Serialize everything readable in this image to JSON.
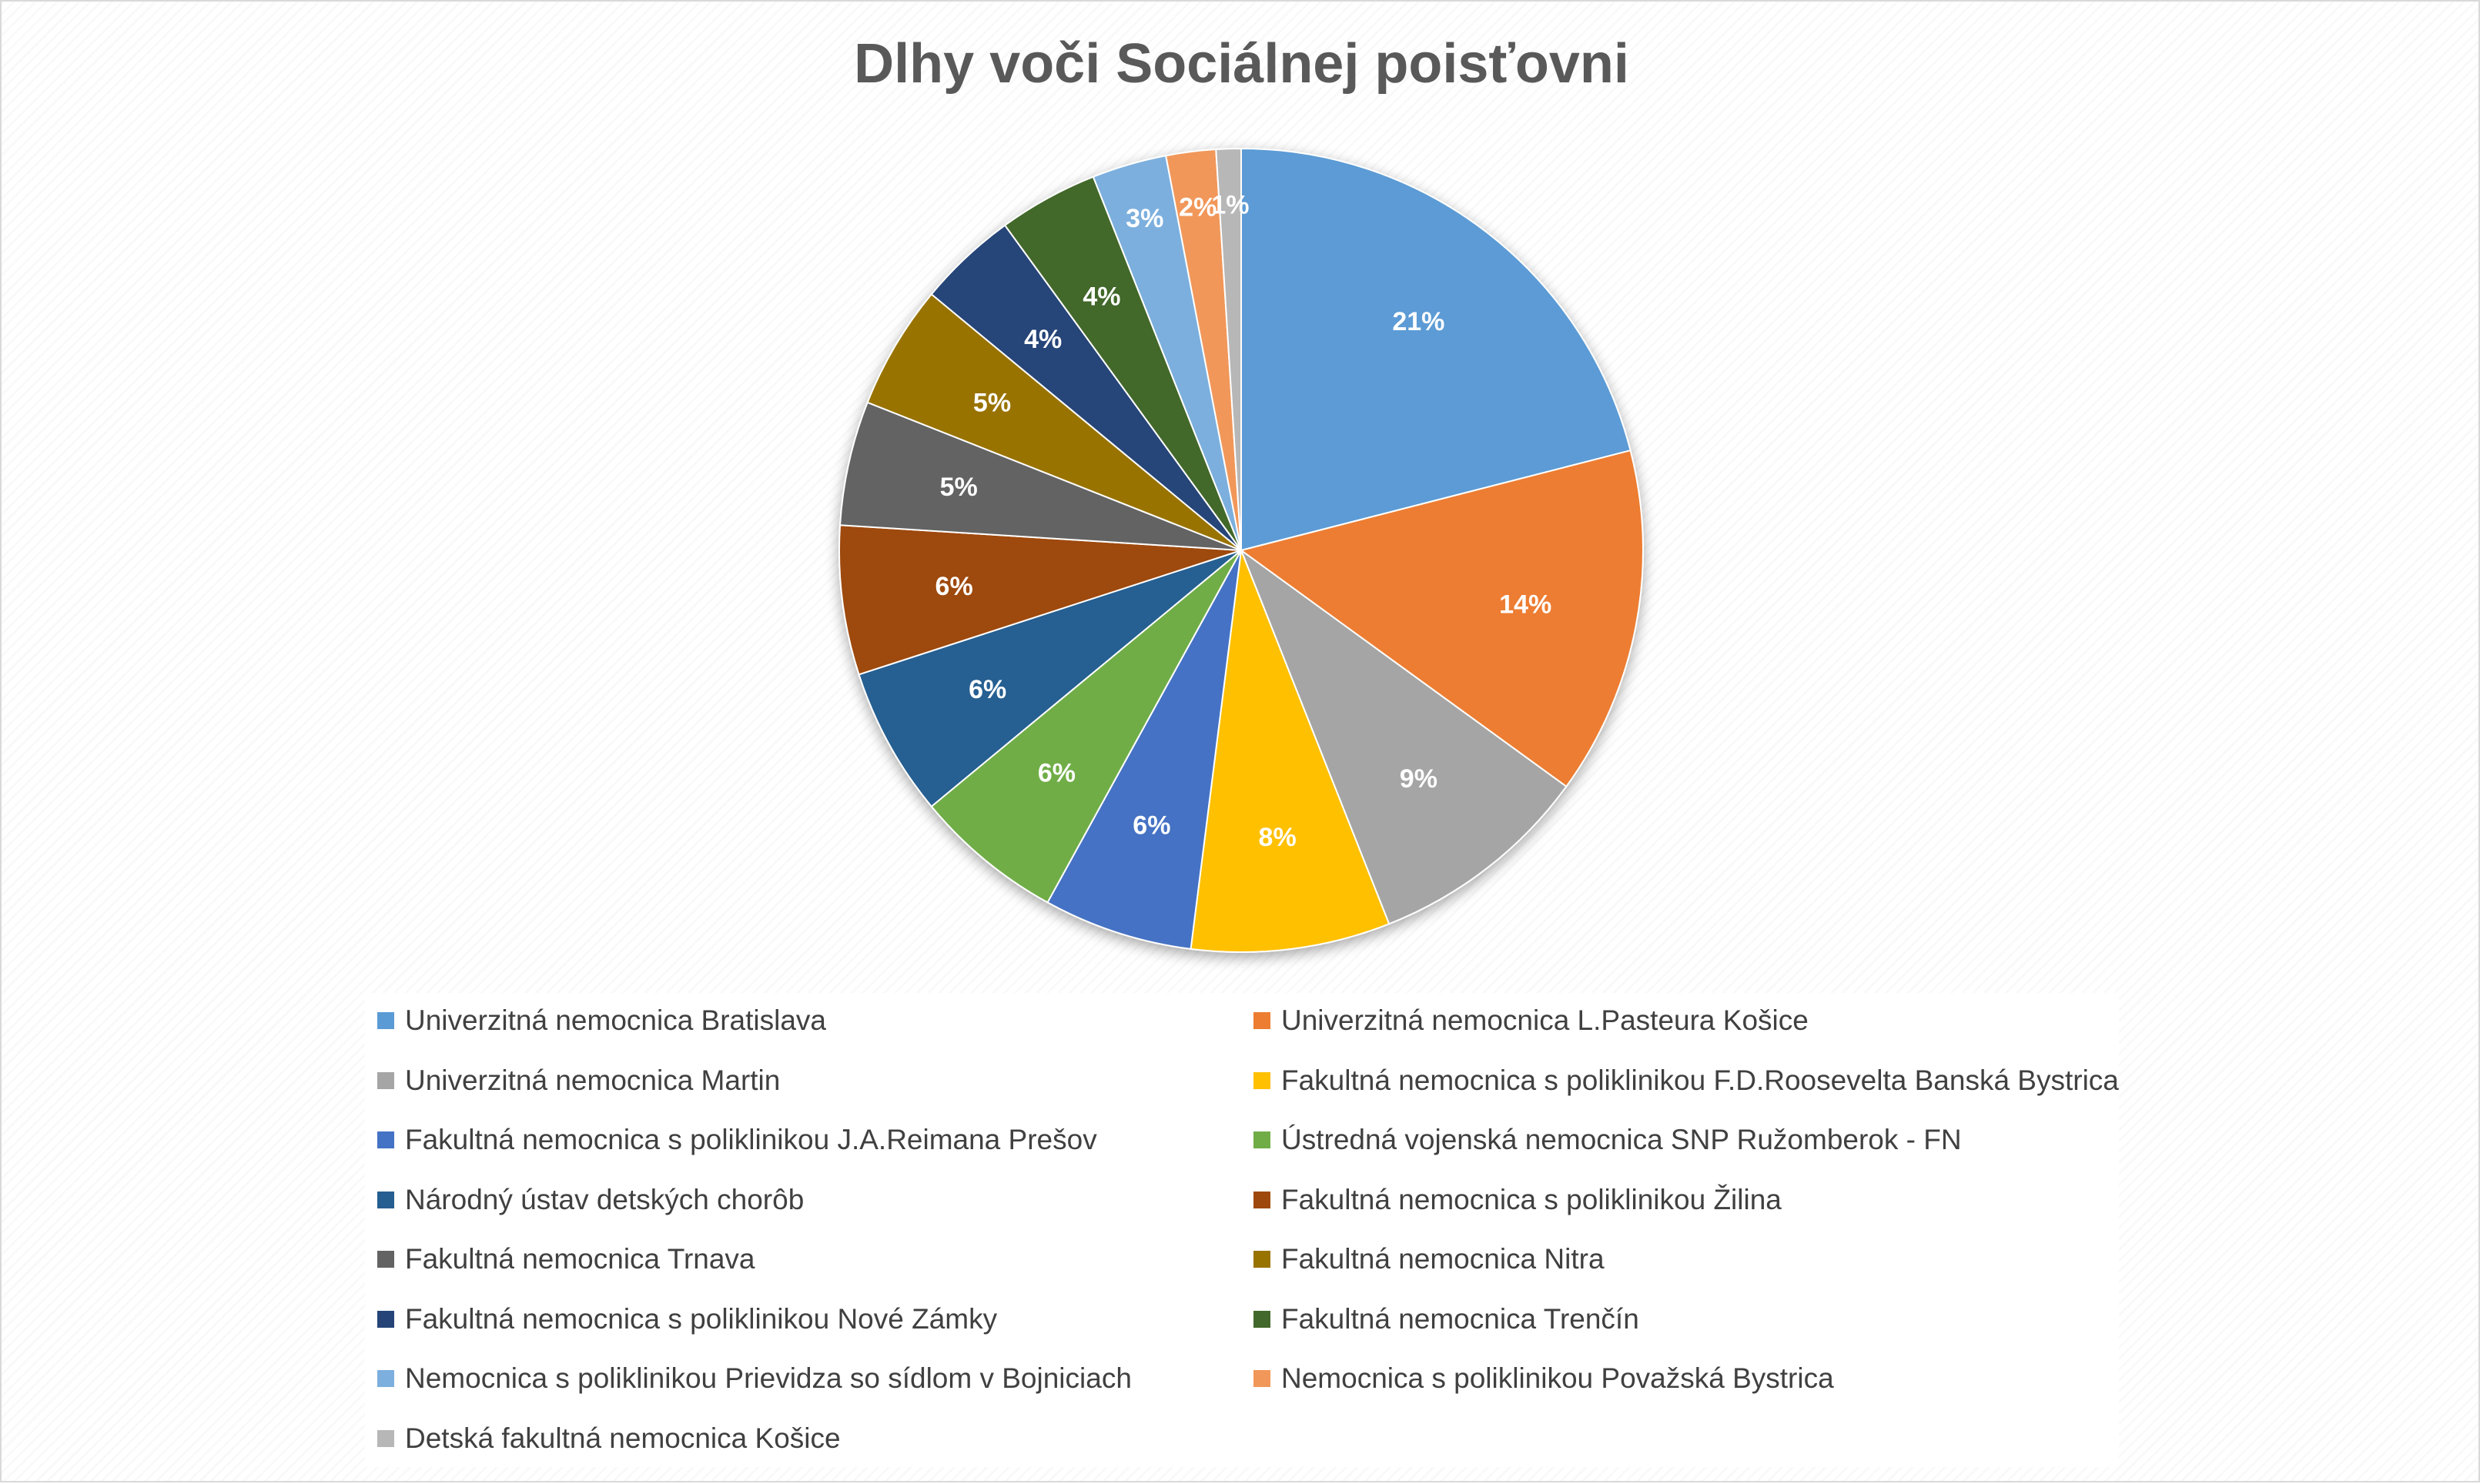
{
  "chart_data": {
    "type": "pie",
    "title": "Dlhy voči Sociálnej poisťovni",
    "legend_position": "bottom",
    "slices": [
      {
        "label": "Univerzitná nemocnica Bratislava",
        "value": 21,
        "display": "21%",
        "color": "#5B9BD5"
      },
      {
        "label": "Univerzitná nemocnica L.Pasteura Košice",
        "value": 14,
        "display": "14%",
        "color": "#ED7D31"
      },
      {
        "label": "Univerzitná nemocnica Martin",
        "value": 9,
        "display": "9%",
        "color": "#A5A5A5"
      },
      {
        "label": "Fakultná nemocnica s poliklinikou F.D.Roosevelta Banská Bystrica",
        "value": 8,
        "display": "8%",
        "color": "#FFC000"
      },
      {
        "label": "Fakultná nemocnica s poliklinikou J.A.Reimana Prešov",
        "value": 6,
        "display": "6%",
        "color": "#4472C4"
      },
      {
        "label": "Ústredná vojenská nemocnica SNP Ružomberok - FN",
        "value": 6,
        "display": "6%",
        "color": "#70AD47"
      },
      {
        "label": "Národný ústav detských chorôb",
        "value": 6,
        "display": "6%",
        "color": "#255E91"
      },
      {
        "label": "Fakultná nemocnica s poliklinikou Žilina",
        "value": 6,
        "display": "6%",
        "color": "#9E480E"
      },
      {
        "label": "Fakultná nemocnica Trnava",
        "value": 5,
        "display": "5%",
        "color": "#636363"
      },
      {
        "label": "Fakultná nemocnica Nitra",
        "value": 5,
        "display": "5%",
        "color": "#997300"
      },
      {
        "label": "Fakultná nemocnica s poliklinikou Nové Zámky",
        "value": 4,
        "display": "4%",
        "color": "#264478"
      },
      {
        "label": "Fakultná nemocnica Trenčín",
        "value": 4,
        "display": "4%",
        "color": "#43682B"
      },
      {
        "label": "Nemocnica s poliklinikou Prievidza so sídlom v Bojniciach",
        "value": 3,
        "display": "3%",
        "color": "#7CAFDD"
      },
      {
        "label": "Nemocnica s poliklinikou Považská Bystrica",
        "value": 2,
        "display": "2%",
        "color": "#F1975A"
      },
      {
        "label": "Detská fakultná nemocnica Košice",
        "value": 1,
        "display": "1%",
        "color": "#B7B7B7"
      }
    ]
  }
}
